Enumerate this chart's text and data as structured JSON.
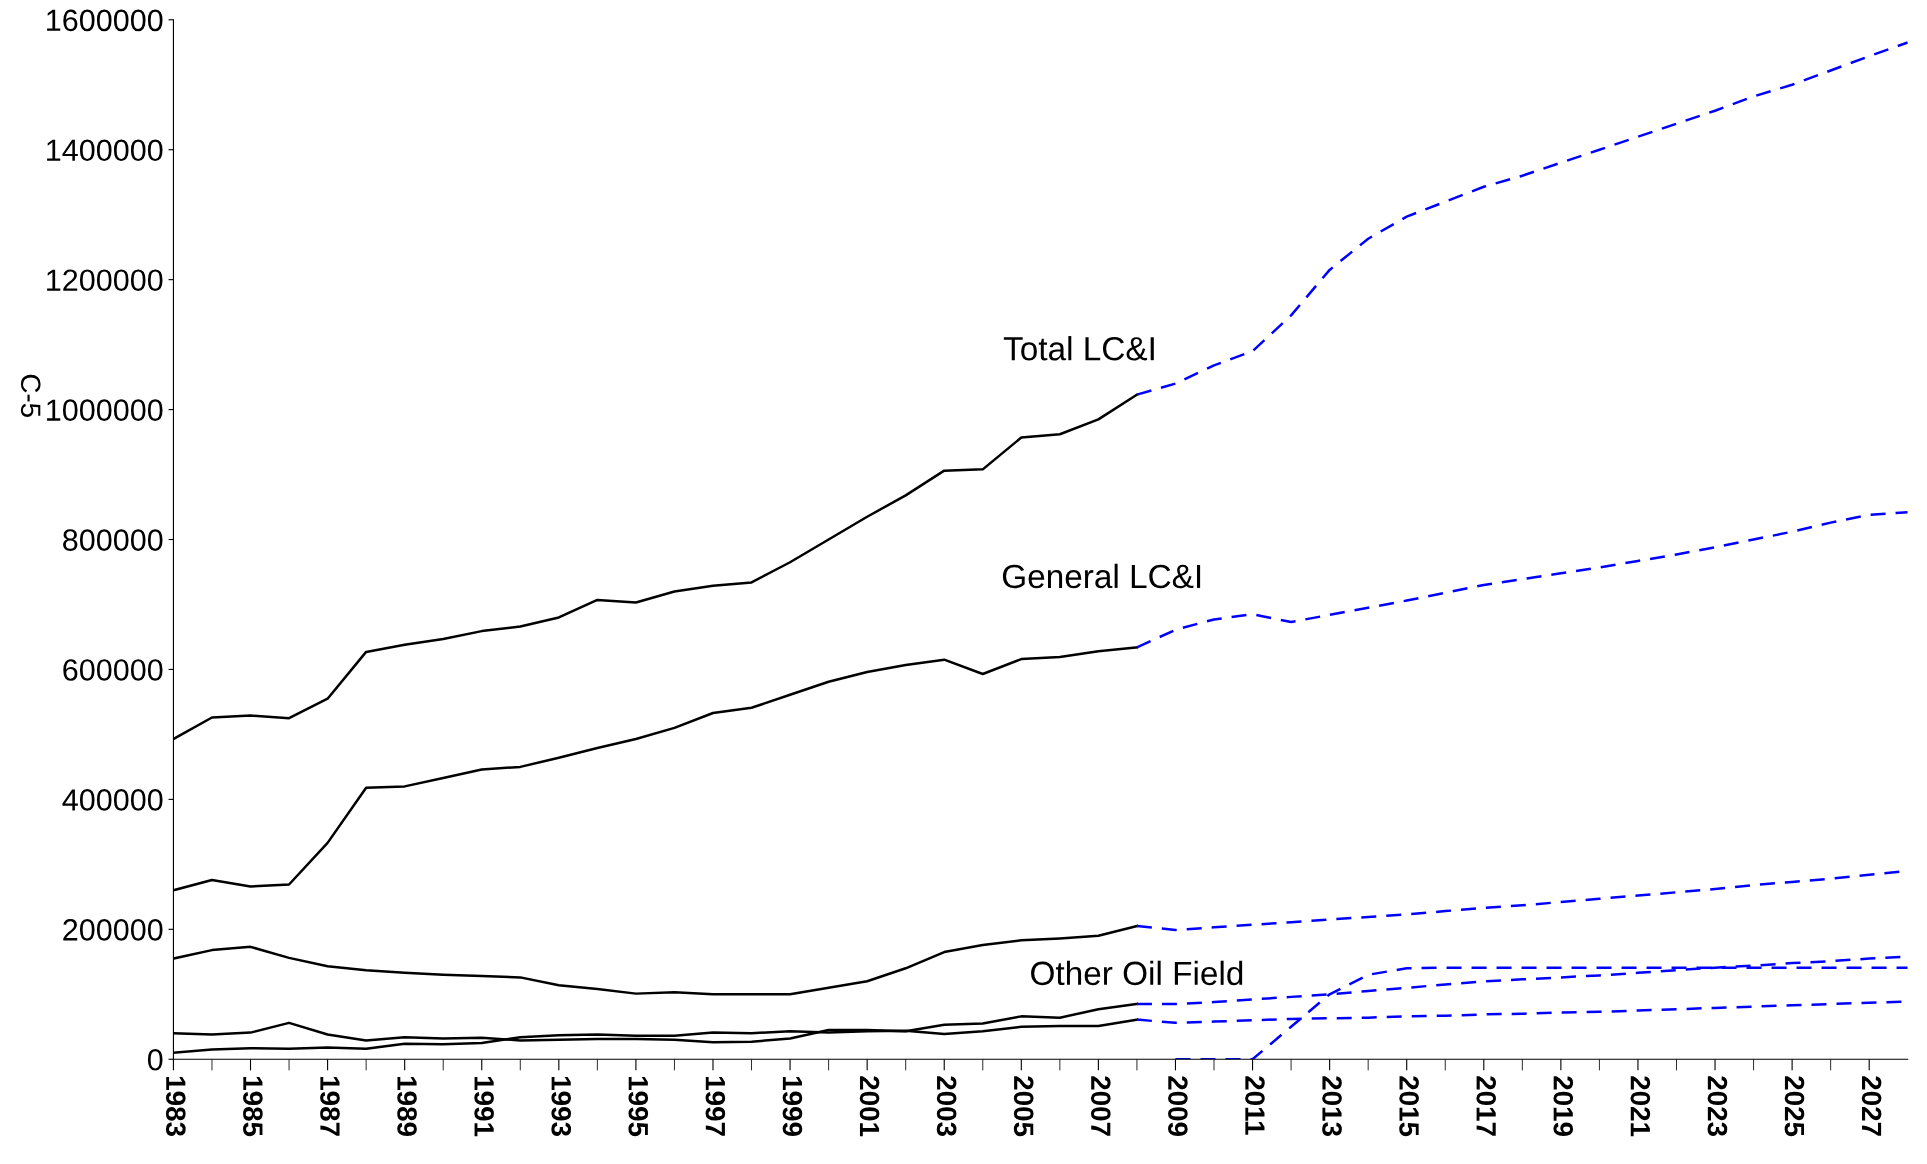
{
  "chart_data": {
    "type": "line",
    "xlim": [
      1983,
      2028
    ],
    "xticks": [
      1983,
      {
        "value": 1984,
        "label": null
      },
      1985,
      {
        "value": 1986,
        "label": null
      },
      1987,
      {
        "value": 1988,
        "label": null
      },
      1989,
      {
        "value": 1990,
        "label": null
      },
      1991,
      {
        "value": 1992,
        "label": null
      },
      1993,
      {
        "value": 1994,
        "label": null
      },
      1995,
      {
        "value": 1996,
        "label": null
      },
      1997,
      {
        "value": 1998,
        "label": null
      },
      1999,
      {
        "value": 2000,
        "label": null
      },
      2001,
      {
        "value": 2002,
        "label": null
      },
      2003,
      {
        "value": 2004,
        "label": null
      },
      2005,
      {
        "value": 2006,
        "label": null
      },
      2007,
      {
        "value": 2008,
        "label": null
      },
      2009,
      {
        "value": 2010,
        "label": null
      },
      2011,
      {
        "value": 2012,
        "label": null
      },
      2013,
      {
        "value": 2014,
        "label": null
      },
      2015,
      {
        "value": 2016,
        "label": null
      },
      2017,
      {
        "value": 2018,
        "label": null
      },
      2019,
      {
        "value": 2020,
        "label": null
      },
      2021,
      {
        "value": 2022,
        "label": null
      },
      2023,
      {
        "value": 2024,
        "label": null
      },
      2025,
      {
        "value": 2026,
        "label": null
      },
      2027
    ],
    "ylim": [
      0,
      1600000
    ],
    "yticks": [
      0,
      200000,
      400000,
      600000,
      800000,
      1000000,
      1200000,
      1400000,
      1600000
    ],
    "grid": false,
    "legend": false,
    "marker": "none",
    "annotations": [
      "C-5"
    ],
    "series": [
      {
        "name": "Total LC&I",
        "color": "#000000",
        "line_style": "solid",
        "x": [
          1983,
          1984,
          1985,
          1986,
          1987,
          1988,
          1989,
          1990,
          1991,
          1992,
          1993,
          1994,
          1995,
          1996,
          1997,
          1998,
          1999,
          2000,
          2001,
          2002,
          2003,
          2004,
          2005,
          2006,
          2007,
          2008
        ],
        "values": [
          493000,
          526000,
          529000,
          525000,
          555000,
          627000,
          638000,
          647000,
          659000,
          666000,
          680000,
          707000,
          703000,
          720000,
          729000,
          734000,
          765000,
          800000,
          835000,
          868000,
          906000,
          908000,
          957000,
          962000,
          985000,
          1023000
        ]
      },
      {
        "color": "#0000ff",
        "line_style": "dashed",
        "x": [
          2008,
          2009,
          2010,
          2011,
          2012,
          2013,
          2014,
          2015,
          2016,
          2017,
          2018,
          2019,
          2020,
          2021,
          2022,
          2023,
          2024,
          2025,
          2026,
          2027,
          2028
        ],
        "values": [
          1023000,
          1040000,
          1068000,
          1090000,
          1145000,
          1215000,
          1263000,
          1297000,
          1320000,
          1343000,
          1360000,
          1380000,
          1400000,
          1420000,
          1440000,
          1460000,
          1482000,
          1500000,
          1522000,
          1544000,
          1565000
        ]
      },
      {
        "name": "General LC&I",
        "color": "#000000",
        "line_style": "solid",
        "x": [
          1983,
          1984,
          1985,
          1986,
          1987,
          1988,
          1989,
          1990,
          1991,
          1992,
          1993,
          1994,
          1995,
          1996,
          1997,
          1998,
          1999,
          2000,
          2001,
          2002,
          2003,
          2004,
          2005,
          2006,
          2007,
          2008
        ],
        "values": [
          260000,
          276000,
          266000,
          269000,
          333000,
          418000,
          420000,
          433000,
          446000,
          450000,
          464000,
          479000,
          493000,
          510000,
          533000,
          541000,
          561000,
          581000,
          596000,
          607000,
          615000,
          593000,
          616000,
          619000,
          628000,
          634000
        ]
      },
      {
        "color": "#0000ff",
        "line_style": "dashed",
        "x": [
          2008,
          2009,
          2010,
          2011,
          2012,
          2013,
          2014,
          2015,
          2016,
          2017,
          2018,
          2019,
          2020,
          2021,
          2022,
          2023,
          2024,
          2025,
          2026,
          2027,
          2028
        ],
        "values": [
          634000,
          661000,
          677000,
          685000,
          673000,
          684000,
          695000,
          706000,
          718000,
          730000,
          739000,
          748000,
          757000,
          767000,
          777000,
          788000,
          800000,
          812000,
          826000,
          838000,
          842000
        ]
      },
      {
        "color": "#000000",
        "line_style": "solid",
        "x": [
          1983,
          1984,
          1985,
          1986,
          1987,
          1988,
          1989,
          1990,
          1991,
          1992,
          1993,
          1994,
          1995,
          1996,
          1997,
          1998,
          1999,
          2000,
          2001,
          2002,
          2003,
          2004,
          2005,
          2006,
          2007,
          2008
        ],
        "values": [
          155000,
          168000,
          173000,
          156000,
          143000,
          137000,
          133000,
          130000,
          128000,
          126000,
          114000,
          108000,
          101000,
          103000,
          100000,
          100000,
          100000,
          110000,
          120000,
          140000,
          165000,
          176000,
          183000,
          186000,
          190000,
          205000
        ]
      },
      {
        "color": "#0000ff",
        "line_style": "dashed",
        "x": [
          2008,
          2009,
          2010,
          2011,
          2012,
          2013,
          2014,
          2015,
          2016,
          2017,
          2018,
          2019,
          2020,
          2021,
          2022,
          2023,
          2024,
          2025,
          2026,
          2027,
          2028
        ],
        "values": [
          205000,
          199000,
          203000,
          207000,
          211000,
          215000,
          219000,
          223000,
          228000,
          233000,
          237000,
          242000,
          247000,
          252000,
          257000,
          262000,
          268000,
          273000,
          278000,
          284000,
          290000
        ]
      },
      {
        "name": "Other Oil Field",
        "color": "#000000",
        "line_style": "solid",
        "x": [
          1983,
          1984,
          1985,
          1986,
          1987,
          1988,
          1989,
          1990,
          1991,
          1992,
          1993,
          1994,
          1995,
          1996,
          1997,
          1998,
          1999,
          2000,
          2001,
          2002,
          2003,
          2004,
          2005,
          2006,
          2007,
          2008
        ],
        "values": [
          40000,
          38000,
          41000,
          56000,
          38000,
          29000,
          34000,
          32000,
          33000,
          29000,
          30000,
          31000,
          31000,
          30000,
          26000,
          27000,
          32000,
          45000,
          45000,
          43000,
          53000,
          55000,
          66000,
          64000,
          77000,
          85000
        ]
      },
      {
        "color": "#0000ff",
        "line_style": "dashed",
        "x": [
          2008,
          2009,
          2010,
          2011,
          2012,
          2013,
          2014,
          2015,
          2016,
          2017,
          2018,
          2019,
          2020,
          2021,
          2022,
          2023,
          2024,
          2025,
          2026,
          2027,
          2028
        ],
        "values": [
          85000,
          85000,
          88000,
          92000,
          96000,
          100000,
          105000,
          110000,
          115000,
          120000,
          123000,
          126000,
          129000,
          133000,
          137000,
          141000,
          144000,
          148000,
          151000,
          155000,
          158000
        ]
      },
      {
        "color": "#000000",
        "line_style": "solid",
        "x": [
          1983,
          1984,
          1985,
          1986,
          1987,
          1988,
          1989,
          1990,
          1991,
          1992,
          1993,
          1994,
          1995,
          1996,
          1997,
          1998,
          1999,
          2000,
          2001,
          2002,
          2003,
          2004,
          2005,
          2006,
          2007,
          2008
        ],
        "values": [
          10000,
          15000,
          17000,
          16000,
          18000,
          16000,
          24000,
          23000,
          25000,
          34000,
          37000,
          38000,
          36000,
          36000,
          41000,
          40000,
          43000,
          41000,
          43000,
          44000,
          39000,
          43000,
          50000,
          51000,
          51000,
          61000
        ]
      },
      {
        "color": "#0000ff",
        "line_style": "dashed",
        "x": [
          2008,
          2009,
          2010,
          2011,
          2012,
          2013,
          2014,
          2015,
          2016,
          2017,
          2018,
          2019,
          2020,
          2021,
          2022,
          2023,
          2024,
          2025,
          2026,
          2027,
          2028
        ],
        "values": [
          61000,
          56000,
          58000,
          60000,
          62000,
          63000,
          64000,
          66000,
          67000,
          69000,
          70000,
          72000,
          73000,
          75000,
          77000,
          79000,
          81000,
          83000,
          85000,
          87000,
          89000
        ]
      },
      {
        "color": "#0000ff",
        "line_style": "dashed",
        "x": [
          2009,
          2010,
          2011,
          2012,
          2013,
          2014,
          2015,
          2016,
          2017,
          2018,
          2019,
          2020,
          2021,
          2022,
          2023,
          2024,
          2025,
          2026,
          2027,
          2028
        ],
        "values": [
          0,
          0,
          0,
          50000,
          100000,
          130000,
          140000,
          141000,
          141000,
          141000,
          141000,
          141000,
          141000,
          141000,
          141000,
          141000,
          141000,
          141000,
          141000,
          141000
        ]
      }
    ]
  }
}
